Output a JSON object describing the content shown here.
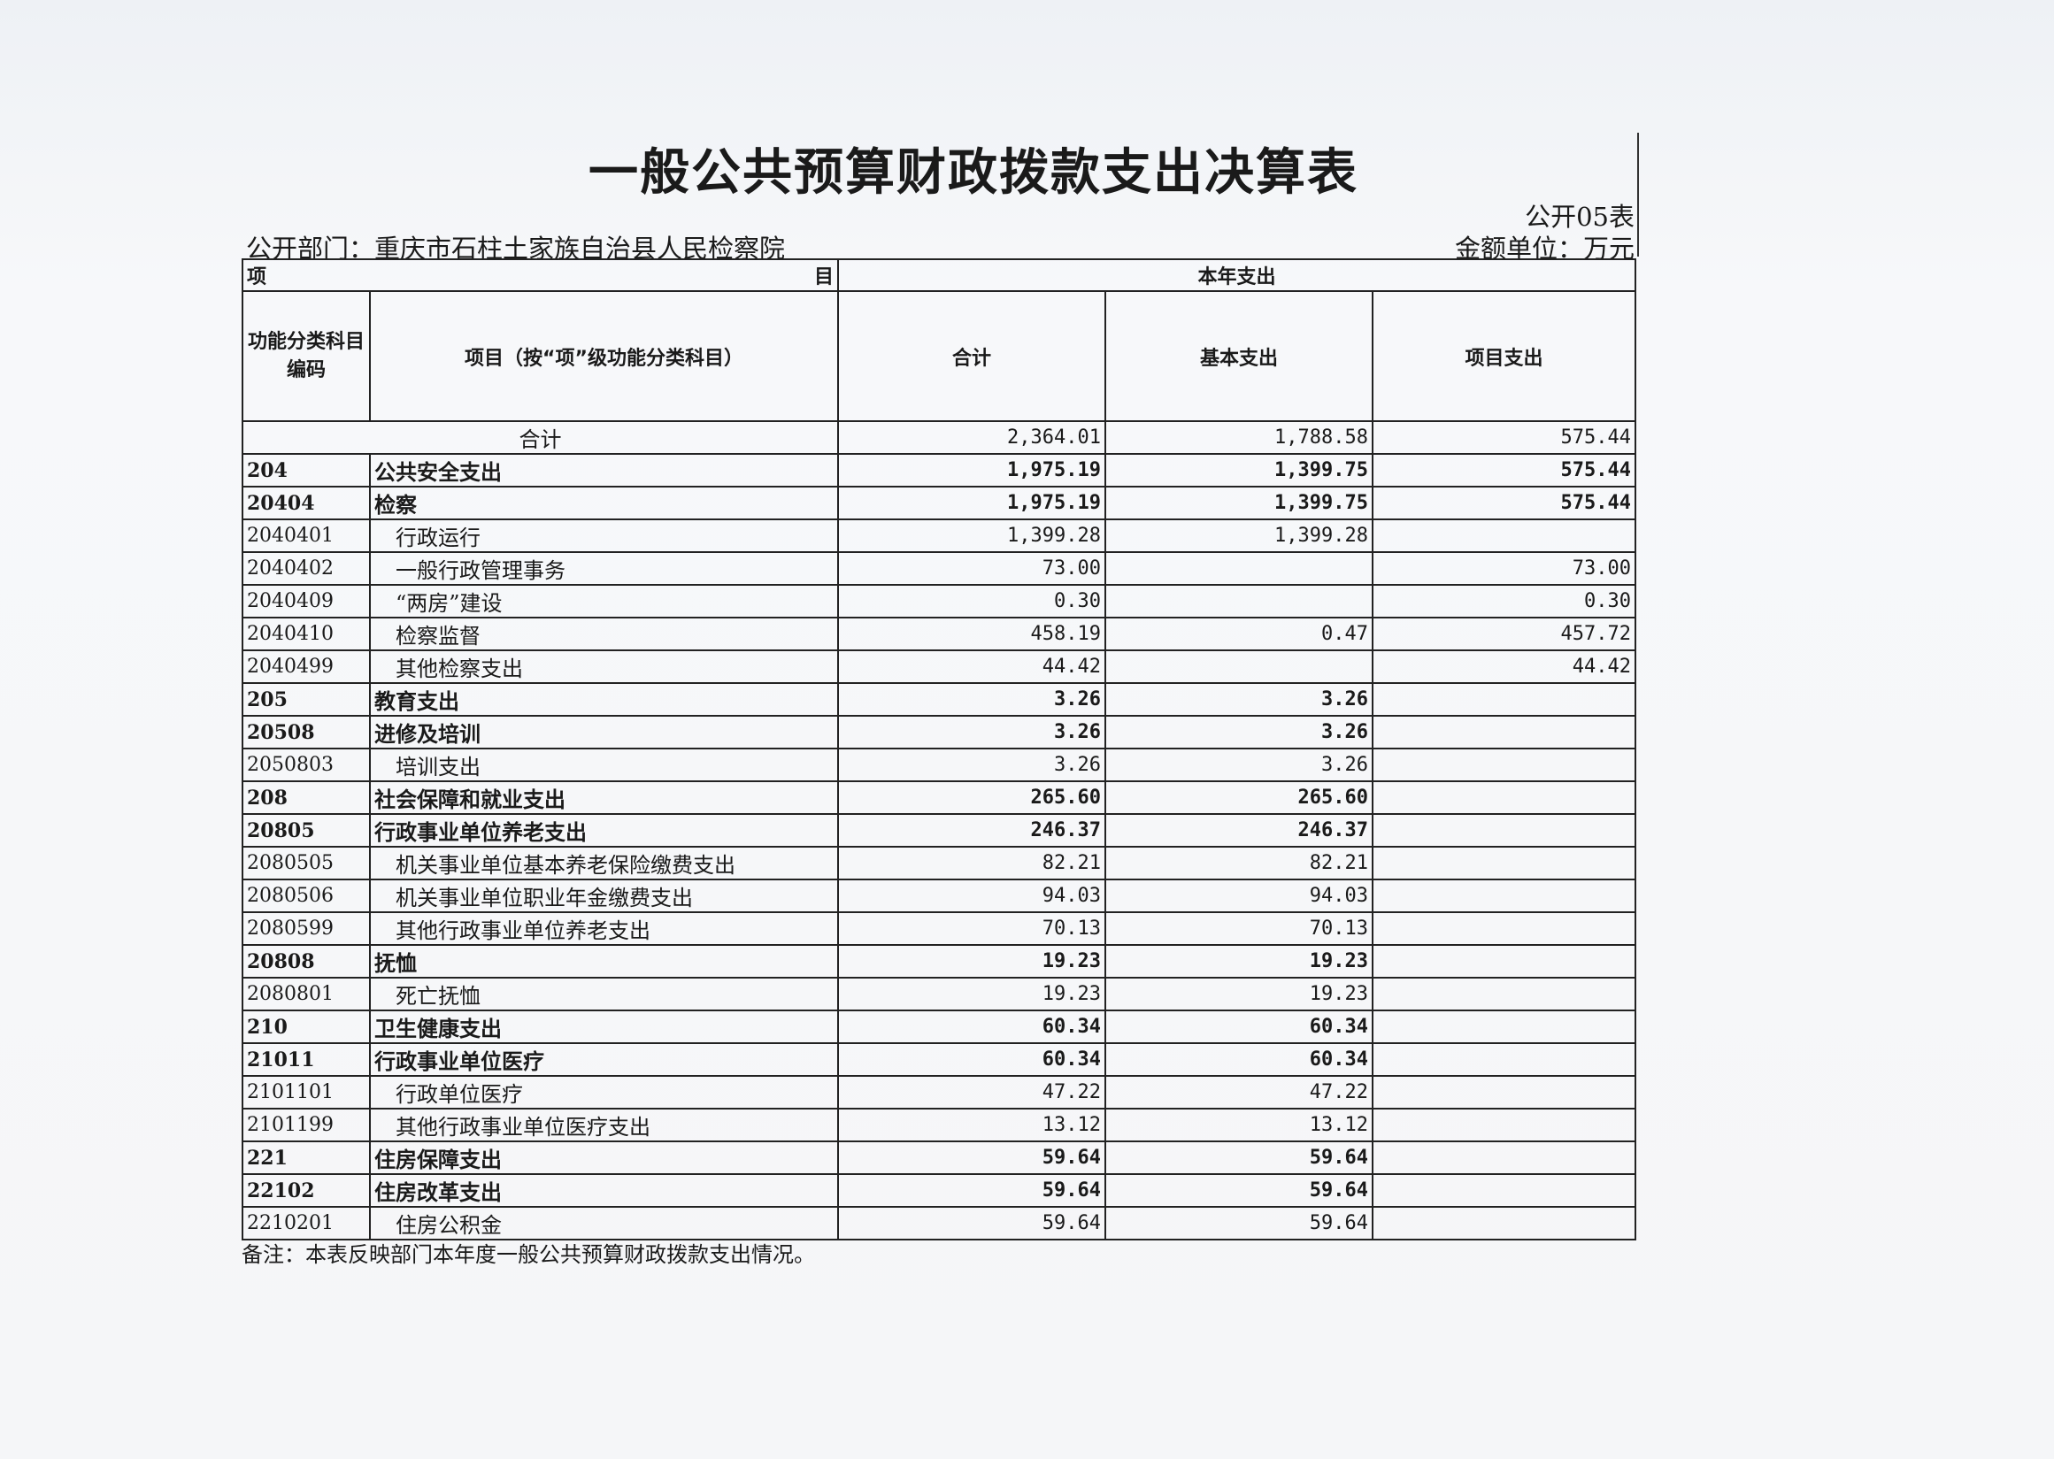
{
  "title": "一般公共预算财政拨款支出决算表",
  "form_no": "公开05表",
  "department": "公开部门：重庆市石柱土家族自治县人民检察院",
  "unit": "金额单位：万元",
  "header": {
    "xiang": "项",
    "mu": "目",
    "this_year": "本年支出",
    "code": "功能分类科目编码",
    "item": "项目（按“项”级功能分类科目）",
    "total": "合计",
    "basic": "基本支出",
    "project": "项目支出"
  },
  "total_row": {
    "label": "合计",
    "total": "2,364.01",
    "basic": "1,788.58",
    "project": "575.44"
  },
  "rows": [
    {
      "code": "204",
      "name": "公共安全支出",
      "total": "1,975.19",
      "basic": "1,399.75",
      "project": "575.44",
      "level": 1
    },
    {
      "code": "20404",
      "name": "检察",
      "total": "1,975.19",
      "basic": "1,399.75",
      "project": "575.44",
      "level": 2
    },
    {
      "code": "2040401",
      "name": "行政运行",
      "total": "1,399.28",
      "basic": "1,399.28",
      "project": "",
      "level": 3
    },
    {
      "code": "2040402",
      "name": "一般行政管理事务",
      "total": "73.00",
      "basic": "",
      "project": "73.00",
      "level": 3
    },
    {
      "code": "2040409",
      "name": "“两房”建设",
      "total": "0.30",
      "basic": "",
      "project": "0.30",
      "level": 3
    },
    {
      "code": "2040410",
      "name": "检察监督",
      "total": "458.19",
      "basic": "0.47",
      "project": "457.72",
      "level": 3
    },
    {
      "code": "2040499",
      "name": "其他检察支出",
      "total": "44.42",
      "basic": "",
      "project": "44.42",
      "level": 3
    },
    {
      "code": "205",
      "name": "教育支出",
      "total": "3.26",
      "basic": "3.26",
      "project": "",
      "level": 1
    },
    {
      "code": "20508",
      "name": "进修及培训",
      "total": "3.26",
      "basic": "3.26",
      "project": "",
      "level": 2
    },
    {
      "code": "2050803",
      "name": "培训支出",
      "total": "3.26",
      "basic": "3.26",
      "project": "",
      "level": 3
    },
    {
      "code": "208",
      "name": "社会保障和就业支出",
      "total": "265.60",
      "basic": "265.60",
      "project": "",
      "level": 1
    },
    {
      "code": "20805",
      "name": "行政事业单位养老支出",
      "total": "246.37",
      "basic": "246.37",
      "project": "",
      "level": 2
    },
    {
      "code": "2080505",
      "name": "机关事业单位基本养老保险缴费支出",
      "total": "82.21",
      "basic": "82.21",
      "project": "",
      "level": 3
    },
    {
      "code": "2080506",
      "name": "机关事业单位职业年金缴费支出",
      "total": "94.03",
      "basic": "94.03",
      "project": "",
      "level": 3
    },
    {
      "code": "2080599",
      "name": "其他行政事业单位养老支出",
      "total": "70.13",
      "basic": "70.13",
      "project": "",
      "level": 3
    },
    {
      "code": "20808",
      "name": "抚恤",
      "total": "19.23",
      "basic": "19.23",
      "project": "",
      "level": 2
    },
    {
      "code": "2080801",
      "name": "死亡抚恤",
      "total": "19.23",
      "basic": "19.23",
      "project": "",
      "level": 3
    },
    {
      "code": "210",
      "name": "卫生健康支出",
      "total": "60.34",
      "basic": "60.34",
      "project": "",
      "level": 1
    },
    {
      "code": "21011",
      "name": "行政事业单位医疗",
      "total": "60.34",
      "basic": "60.34",
      "project": "",
      "level": 2
    },
    {
      "code": "2101101",
      "name": "行政单位医疗",
      "total": "47.22",
      "basic": "47.22",
      "project": "",
      "level": 3
    },
    {
      "code": "2101199",
      "name": "其他行政事业单位医疗支出",
      "total": "13.12",
      "basic": "13.12",
      "project": "",
      "level": 3
    },
    {
      "code": "221",
      "name": "住房保障支出",
      "total": "59.64",
      "basic": "59.64",
      "project": "",
      "level": 1
    },
    {
      "code": "22102",
      "name": "住房改革支出",
      "total": "59.64",
      "basic": "59.64",
      "project": "",
      "level": 2
    },
    {
      "code": "2210201",
      "name": "住房公积金",
      "total": "59.64",
      "basic": "59.64",
      "project": "",
      "level": 3
    }
  ],
  "note": "备注：本表反映部门本年度一般公共预算财政拨款支出情况。"
}
